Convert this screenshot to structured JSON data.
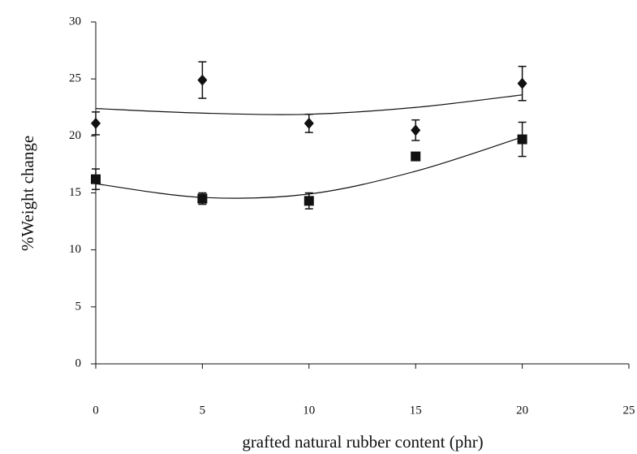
{
  "chart_data": {
    "type": "scatter",
    "x_label": "grafted natural rubber content (phr)",
    "y_label": "%Weight change",
    "x": [
      0,
      5,
      10,
      15,
      20
    ],
    "series": [
      {
        "marker": "diamond",
        "color": "#111111",
        "values": [
          21.1,
          24.9,
          21.1,
          20.5,
          24.6
        ],
        "errors": [
          1.0,
          1.6,
          0.8,
          0.9,
          1.5
        ],
        "trend": [
          22.4,
          22.0,
          21.9,
          22.5,
          23.6
        ]
      },
      {
        "marker": "square",
        "color": "#111111",
        "values": [
          16.2,
          14.5,
          14.3,
          18.2,
          19.7
        ],
        "errors": [
          0.9,
          0.5,
          0.7,
          0.2,
          1.5
        ],
        "trend": [
          15.8,
          14.6,
          14.9,
          16.9,
          19.9
        ]
      }
    ],
    "xlim": [
      0,
      25
    ],
    "xticks": [
      0,
      5,
      10,
      15,
      20,
      25
    ],
    "ylim": [
      0,
      30
    ],
    "yticks": [
      0,
      5,
      10,
      15,
      20,
      25,
      30
    ],
    "grid": false
  }
}
